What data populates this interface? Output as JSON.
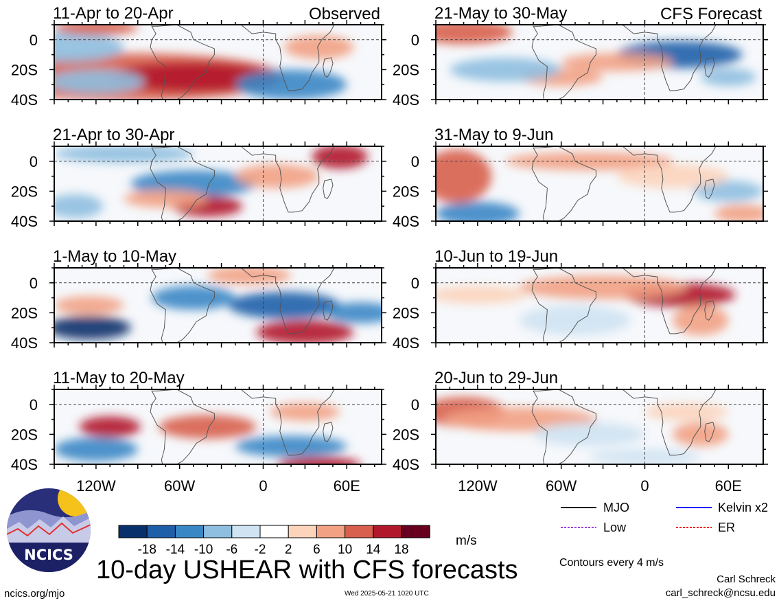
{
  "columns": {
    "left_header": "Observed",
    "right_header": "CFS Forecast"
  },
  "panels": [
    {
      "id": "p1",
      "title": "11-Apr to 20-Apr",
      "column": "left",
      "row": 0
    },
    {
      "id": "p2",
      "title": "21-Apr to 30-Apr",
      "column": "left",
      "row": 1
    },
    {
      "id": "p3",
      "title": "1-May to 10-May",
      "column": "left",
      "row": 2
    },
    {
      "id": "p4",
      "title": "11-May to 20-May",
      "column": "left",
      "row": 3
    },
    {
      "id": "p5",
      "title": "21-May to 30-May",
      "column": "right",
      "row": 0
    },
    {
      "id": "p6",
      "title": "31-May to 9-Jun",
      "column": "right",
      "row": 1
    },
    {
      "id": "p7",
      "title": "10-Jun to 19-Jun",
      "column": "right",
      "row": 2
    },
    {
      "id": "p8",
      "title": "20-Jun to 29-Jun",
      "column": "right",
      "row": 3
    }
  ],
  "axes": {
    "lat_labels": [
      "0",
      "20S",
      "40S"
    ],
    "lon_labels": [
      "120W",
      "60W",
      "0",
      "60E"
    ],
    "lon_range": [
      -150,
      85
    ],
    "lat_range": [
      -40,
      10
    ]
  },
  "colorbar": {
    "labels": [
      "-18",
      "-14",
      "-10",
      "-6",
      "-2",
      "2",
      "6",
      "10",
      "14",
      "18"
    ],
    "colors": [
      "#08306b",
      "#1f5faa",
      "#3a87c5",
      "#8fbfe0",
      "#cfe3f2",
      "#ffffff",
      "#fcd4bc",
      "#f2a184",
      "#d85f4e",
      "#b2182b",
      "#67001f"
    ],
    "units": "m/s"
  },
  "legend": [
    {
      "label": "MJO",
      "color": "#000000"
    },
    {
      "label": "Kelvin x2",
      "color": "#1010ff"
    },
    {
      "label": "Low",
      "color": "#a040e0"
    },
    {
      "label": "ER",
      "color": "#ee1010"
    }
  ],
  "contour_note": "Contours every 4 m/s",
  "main_title": "10-day USHEAR with CFS forecasts",
  "logo": {
    "text": "NCICS"
  },
  "footer": {
    "url": "ncics.org/mjo",
    "timestamp": "Wed 2025-05-21 1020 UTC",
    "author": "Carl Schreck",
    "email": "carl_schreck@ncsu.edu"
  }
}
